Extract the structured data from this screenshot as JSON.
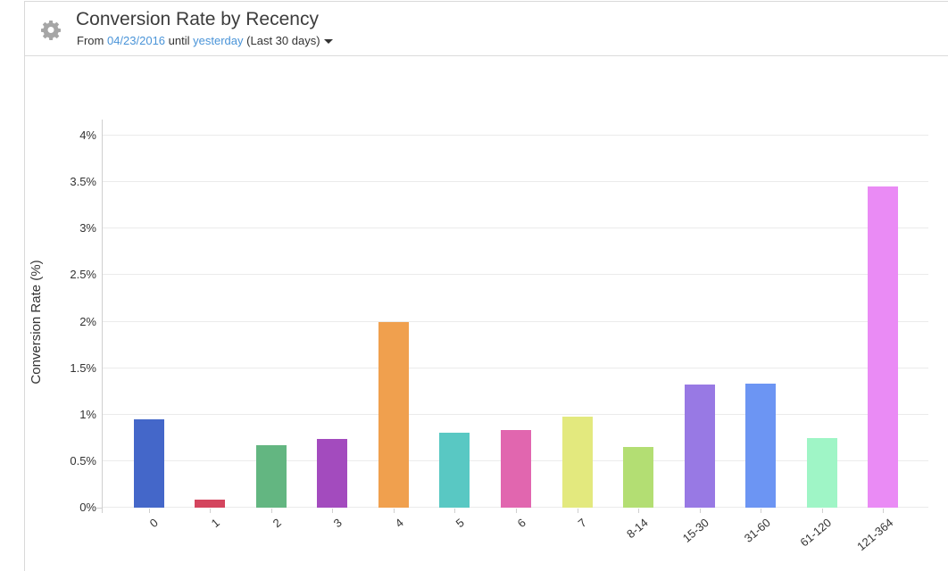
{
  "header": {
    "title": "Conversion Rate by Recency",
    "subtitle": {
      "from_label": "From",
      "start_date": "04/23/2016",
      "until_label": "until",
      "end_date": "yesterday",
      "range_label": "(Last 30 days)"
    }
  },
  "chart_data": {
    "type": "bar",
    "title": "Conversion Rate by Recency",
    "xlabel": "",
    "ylabel": "Conversion Rate (%)",
    "categories": [
      "0",
      "1",
      "2",
      "3",
      "4",
      "5",
      "6",
      "7",
      "8-14",
      "15-30",
      "31-60",
      "61-120",
      "121-364"
    ],
    "values": [
      0.95,
      0.09,
      0.67,
      0.74,
      2.0,
      0.81,
      0.83,
      0.98,
      0.65,
      1.32,
      1.33,
      0.75,
      3.45
    ],
    "bar_colors": [
      "#4467C9",
      "#D4455E",
      "#63B681",
      "#A34BBE",
      "#F0A04E",
      "#59C8C3",
      "#E166AF",
      "#E3E97E",
      "#B3DE73",
      "#9879E4",
      "#6C95F3",
      "#9FF5C6",
      "#EA8BF5"
    ],
    "ylim": [
      0,
      4
    ],
    "ytick_step": 0.5,
    "ytick_labels": [
      "0%",
      "0.5%",
      "1%",
      "1.5%",
      "2%",
      "2.5%",
      "3%",
      "3.5%",
      "4%"
    ],
    "grid": true,
    "legend": false
  },
  "colors": {
    "link": "#4a94d8",
    "grid": "#ebebeb",
    "axis": "#cfcfcf",
    "text": "#333333",
    "title_text": "#3c3c3c",
    "border": "#d9d9d9",
    "gear": "#a6a6a6"
  }
}
